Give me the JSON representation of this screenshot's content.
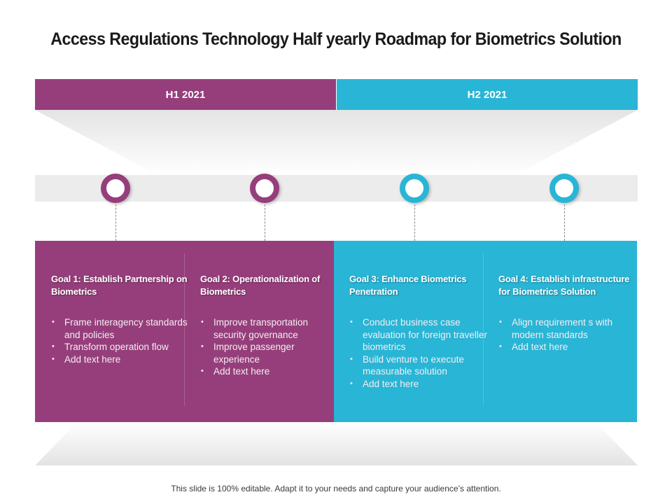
{
  "title": "Access Regulations Technology Half yearly Roadmap for Biometrics Solution",
  "periods": [
    "H1 2021",
    "H2 2021"
  ],
  "colors": {
    "h1": "#963e7b",
    "h2": "#29b5d5"
  },
  "goals": [
    {
      "title": "Goal 1: Establish Partnership on Biometrics",
      "items": [
        "Frame interagency standards and policies",
        "Transform operation flow",
        "Add text here"
      ]
    },
    {
      "title": "Goal 2: Operationalization of Biometrics",
      "items": [
        "Improve transportation security governance",
        "Improve passenger experience",
        "Add text here"
      ]
    },
    {
      "title": "Goal 3: Enhance Biometrics Penetration",
      "items": [
        "Conduct business case evaluation for foreign traveller biometrics",
        "Build venture to execute measurable solution",
        "Add text here"
      ]
    },
    {
      "title": "Goal 4: Establish infrastructure for Biometrics Solution",
      "items": [
        "Align requirement s with modern standards",
        "Add text here"
      ]
    }
  ],
  "footer": "This slide is 100% editable. Adapt it to your needs and capture your audience’s attention."
}
